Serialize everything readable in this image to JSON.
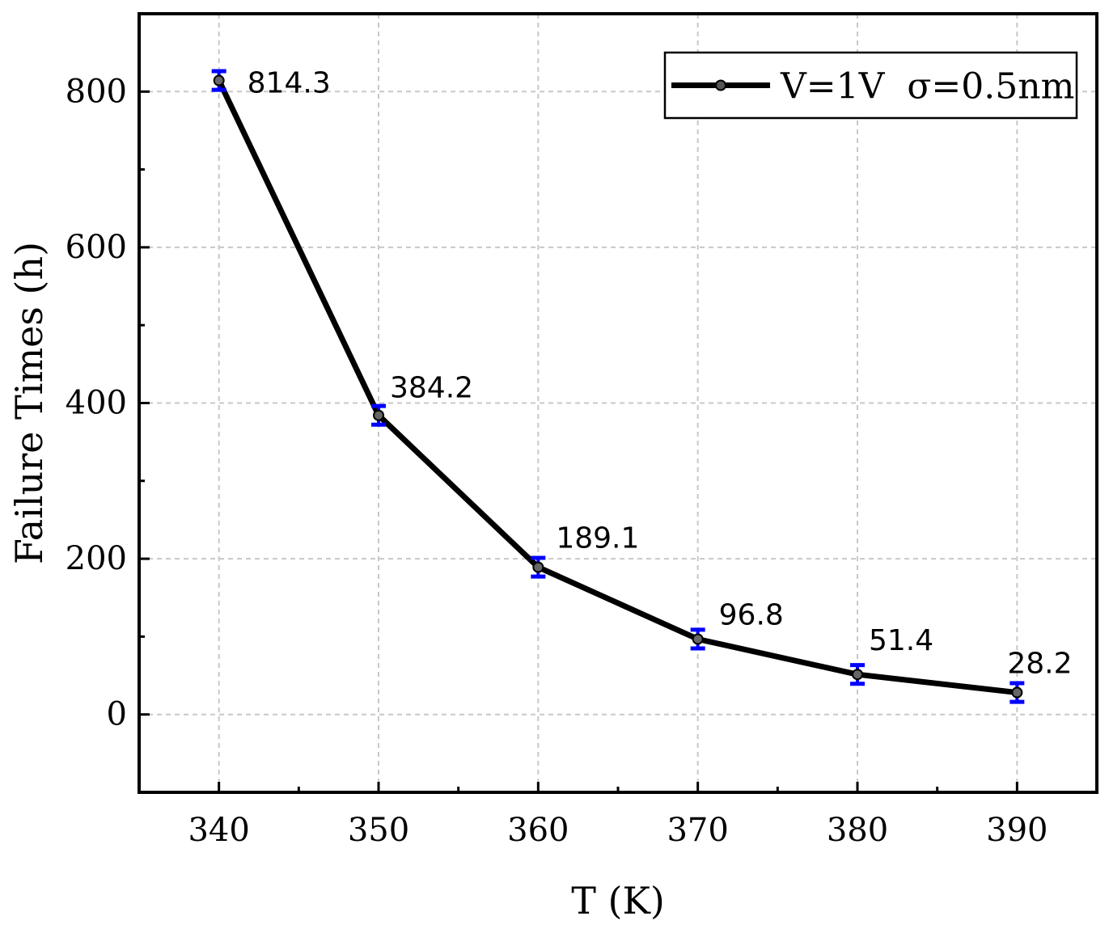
{
  "chart_data": {
    "type": "line",
    "title": "",
    "xlabel": "T (K)",
    "ylabel": "Failure Times (h)",
    "xlim": [
      335,
      395
    ],
    "ylim": [
      -100,
      900
    ],
    "x_ticks": [
      340,
      350,
      360,
      370,
      380,
      390
    ],
    "y_ticks": [
      0,
      200,
      400,
      600,
      800
    ],
    "grid": true,
    "legend_position": "top-right",
    "series": [
      {
        "name": "V=1V  σ=0.5nm",
        "color": "#000000",
        "error_bar_color": "#0000ff",
        "x": [
          340,
          350,
          360,
          370,
          380,
          390
        ],
        "y": [
          814.3,
          384.2,
          189.1,
          96.8,
          51.4,
          28.2
        ],
        "error": [
          12,
          12,
          12,
          12,
          12,
          12
        ],
        "labels": [
          "814.3",
          "384.2",
          "189.1",
          "96.8",
          "51.4",
          "28.2"
        ]
      }
    ]
  }
}
